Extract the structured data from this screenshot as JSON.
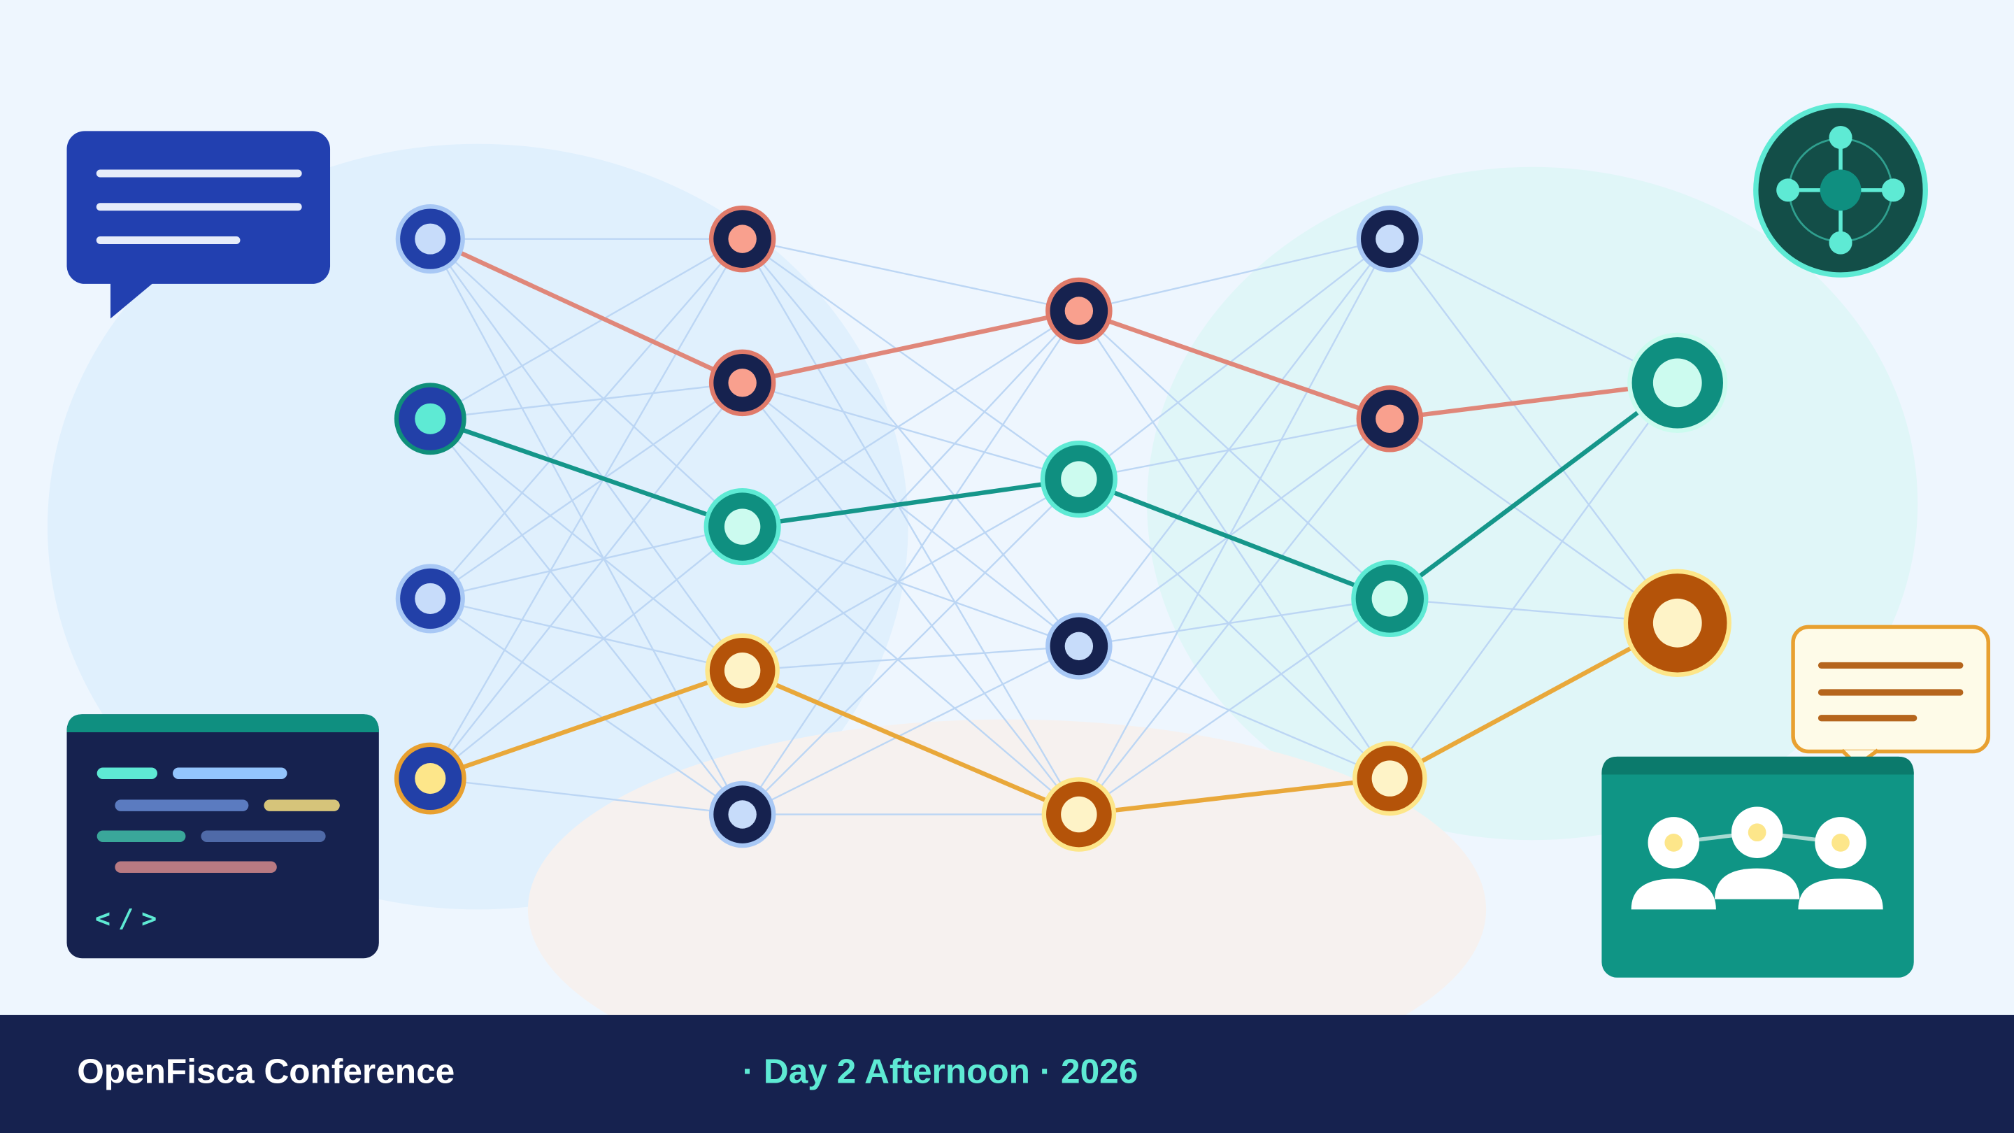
{
  "footer": {
    "title": "OpenFisca Conference",
    "subtitle": "· Day 2 Afternoon · 2026"
  },
  "code_panel": {
    "tag": "</>"
  }
}
